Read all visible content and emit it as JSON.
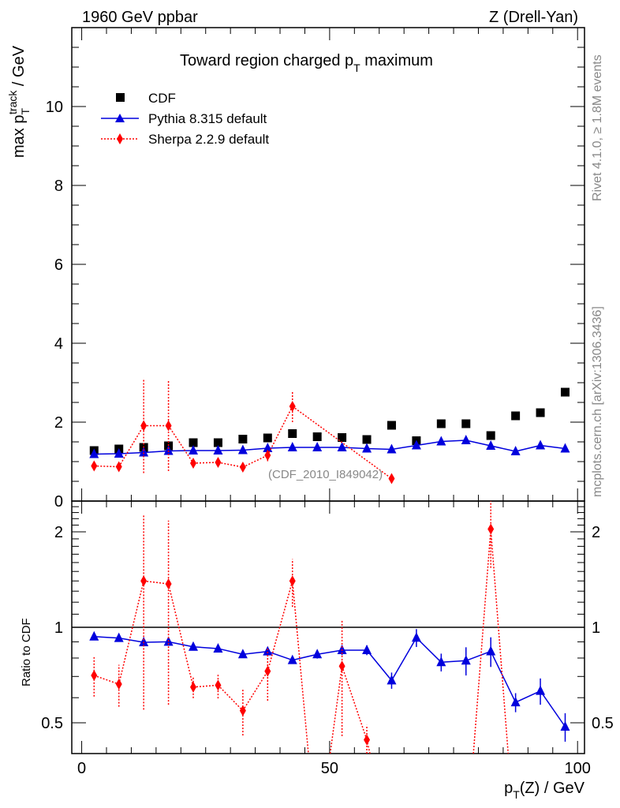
{
  "chart_data": {
    "type": "scatter",
    "header_left": "1960 GeV ppbar",
    "header_right": "Z (Drell-Yan)",
    "title_prefix": "Toward region charged p",
    "title_sub": "T",
    "title_suffix": " maximum",
    "ylabel_main": "max p",
    "ylabel_main_sub": "T",
    "ylabel_main_sup": "track",
    "ylabel_main_suffix": " / GeV",
    "ylabel_ratio": "Ratio to CDF",
    "xlabel_prefix": "p",
    "xlabel_sub": "T",
    "xlabel_suffix": "(Z) / GeV",
    "analysis_tag": "(CDF_2010_I849042)",
    "side_text_1": "Rivet 4.1.0, ≥ 1.8M events",
    "side_text_2": "mcplots.cern.ch [arXiv:1306.3436]",
    "xlim": [
      -2,
      101.4
    ],
    "ylim_main": [
      0,
      12
    ],
    "ylim_ratio": [
      0.4,
      2.5
    ],
    "ratio_scale": "log",
    "x_ticks": [
      "0",
      "50",
      "100"
    ],
    "y_ticks_main": [
      "0",
      "2",
      "4",
      "6",
      "8",
      "10"
    ],
    "y_ticks_ratio": [
      "0.5",
      "1",
      "2"
    ],
    "legend_placement": "top-left",
    "x": [
      2.5,
      7.5,
      12.5,
      17.5,
      22.5,
      27.5,
      32.5,
      37.5,
      42.5,
      47.5,
      52.5,
      57.5,
      62.5,
      67.5,
      72.5,
      77.5,
      82.5,
      87.5,
      92.5,
      97.5
    ],
    "series": [
      {
        "name": "CDF",
        "color": "#000000",
        "marker": "square",
        "values": [
          1.28,
          1.32,
          1.36,
          1.4,
          1.48,
          1.48,
          1.57,
          1.6,
          1.71,
          1.63,
          1.61,
          1.56,
          1.92,
          1.53,
          1.96,
          1.96,
          1.66,
          2.16,
          2.24,
          2.76
        ]
      },
      {
        "name": "Pythia 8.315 default",
        "color": "#0000dd",
        "marker": "triangle",
        "line": "solid",
        "values": [
          1.19,
          1.2,
          1.23,
          1.27,
          1.28,
          1.28,
          1.29,
          1.34,
          1.36,
          1.36,
          1.36,
          1.33,
          1.31,
          1.41,
          1.51,
          1.54,
          1.4,
          1.26,
          1.41,
          1.33
        ],
        "errors": [
          0.02,
          0.02,
          0.03,
          0.03,
          0.03,
          0.03,
          0.03,
          0.04,
          0.04,
          0.04,
          0.05,
          0.05,
          0.05,
          0.07,
          0.07,
          0.1,
          0.1,
          0.07,
          0.1,
          0.08
        ],
        "ratio": [
          0.935,
          0.925,
          0.897,
          0.9,
          0.868,
          0.857,
          0.822,
          0.839,
          0.788,
          0.822,
          0.847,
          0.847,
          0.68,
          0.927,
          0.776,
          0.785,
          0.84,
          0.58,
          0.63,
          0.486
        ],
        "ratio_errors": [
          0.01,
          0.01,
          0.01,
          0.01,
          0.01,
          0.01,
          0.015,
          0.02,
          0.02,
          0.025,
          0.03,
          0.03,
          0.04,
          0.06,
          0.05,
          0.08,
          0.09,
          0.04,
          0.06,
          0.05
        ]
      },
      {
        "name": "Sherpa 2.2.9 default",
        "color": "#ff0000",
        "marker": "diamond",
        "line": "dotted",
        "x": [
          2.5,
          7.5,
          12.5,
          17.5,
          22.5,
          27.5,
          32.5,
          37.5,
          42.5,
          62.5
        ],
        "values": [
          0.89,
          0.87,
          1.91,
          1.91,
          0.96,
          0.98,
          0.86,
          1.16,
          2.4,
          0.57
        ],
        "errors": [
          0.08,
          0.08,
          1.2,
          1.15,
          0.06,
          0.08,
          0.1,
          0.15,
          0.4,
          0.02
        ],
        "ratio": [
          0.705,
          0.662,
          1.4,
          1.37,
          0.648,
          0.657,
          0.546,
          0.727,
          1.4,
          0.2,
          0.754,
          0.442,
          0.2,
          0.2,
          0.2,
          0.2,
          2.04,
          0.2,
          null,
          null
        ],
        "ratio_errors": [
          0.1,
          0.1,
          0.85,
          0.8,
          0.05,
          0.06,
          0.09,
          0.14,
          0.24,
          0,
          0.3,
          0.05,
          0,
          0,
          0,
          0,
          0.5,
          0,
          0,
          0
        ]
      }
    ]
  }
}
